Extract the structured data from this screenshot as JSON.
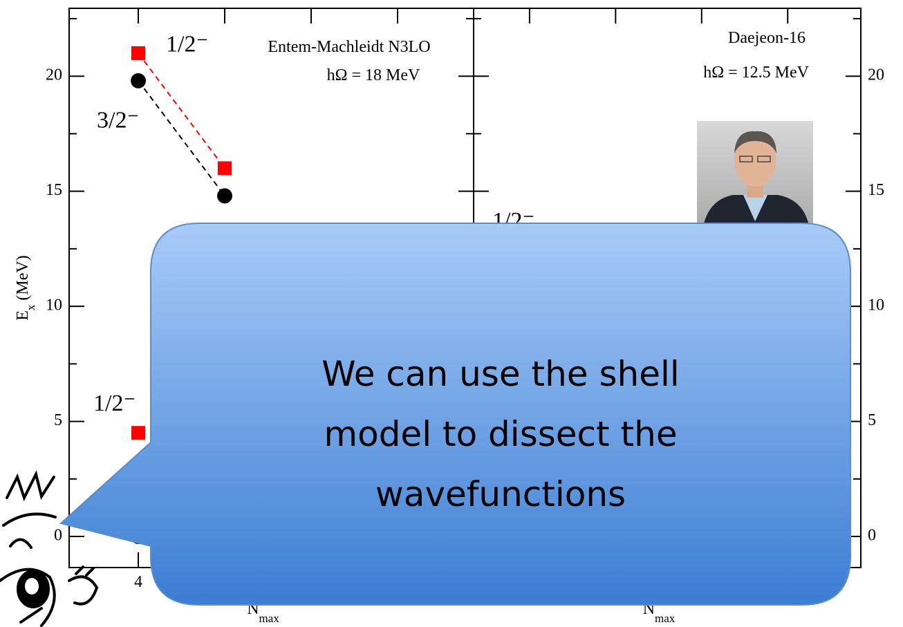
{
  "chart_data": [
    {
      "type": "line",
      "annotations": [
        "Entem-Machleidt N3LO",
        "hΩ  = 18 MeV"
      ],
      "ylabel": [
        "E",
        "x",
        "(MeV)"
      ],
      "xlabel": [
        "N",
        "max"
      ],
      "x": [
        4,
        6
      ],
      "series": [
        {
          "name": "1/2⁻",
          "color": "#ff0000",
          "marker": "square",
          "values": [
            21,
            16
          ]
        },
        {
          "name": "3/2⁻",
          "color": "#000000",
          "marker": "circle",
          "values": [
            19.8,
            14.8
          ]
        },
        {
          "name": "1/2⁻",
          "color": "#ff0000",
          "marker": "square",
          "values": [
            4.5,
            null
          ]
        },
        {
          "color": "#000000",
          "marker": "circle",
          "values": [
            0,
            null
          ]
        }
      ],
      "xlim": [
        2.4,
        11.76
      ],
      "xticks": [
        4,
        6,
        8,
        10
      ],
      "ylim": [
        -1.35,
        22.95
      ],
      "yticks": [
        0,
        5,
        10,
        15,
        20
      ],
      "yminorticks": [
        2.5,
        7.5,
        12.5,
        17.5,
        22.5
      ],
      "yaxis_side": "left"
    },
    {
      "type": "line",
      "annotations": [
        "Daejeon-16",
        "hΩ  = 12.5 MeV",
        "1/2⁻"
      ],
      "xlabel": [
        "N",
        "max"
      ],
      "x": [],
      "series": [],
      "xlim": [
        2.7,
        11.7
      ],
      "xticks": [
        4,
        6,
        8,
        10
      ],
      "ylim": [
        -1.35,
        22.95
      ],
      "yticks": [
        0,
        5,
        10,
        15,
        20
      ],
      "yminorticks": [
        2.5,
        7.5,
        12.5,
        17.5,
        22.5
      ],
      "yaxis_side": "right"
    }
  ],
  "callout": {
    "lines": [
      "We can use the shell",
      "model to dissect the",
      "wavefunctions"
    ]
  }
}
